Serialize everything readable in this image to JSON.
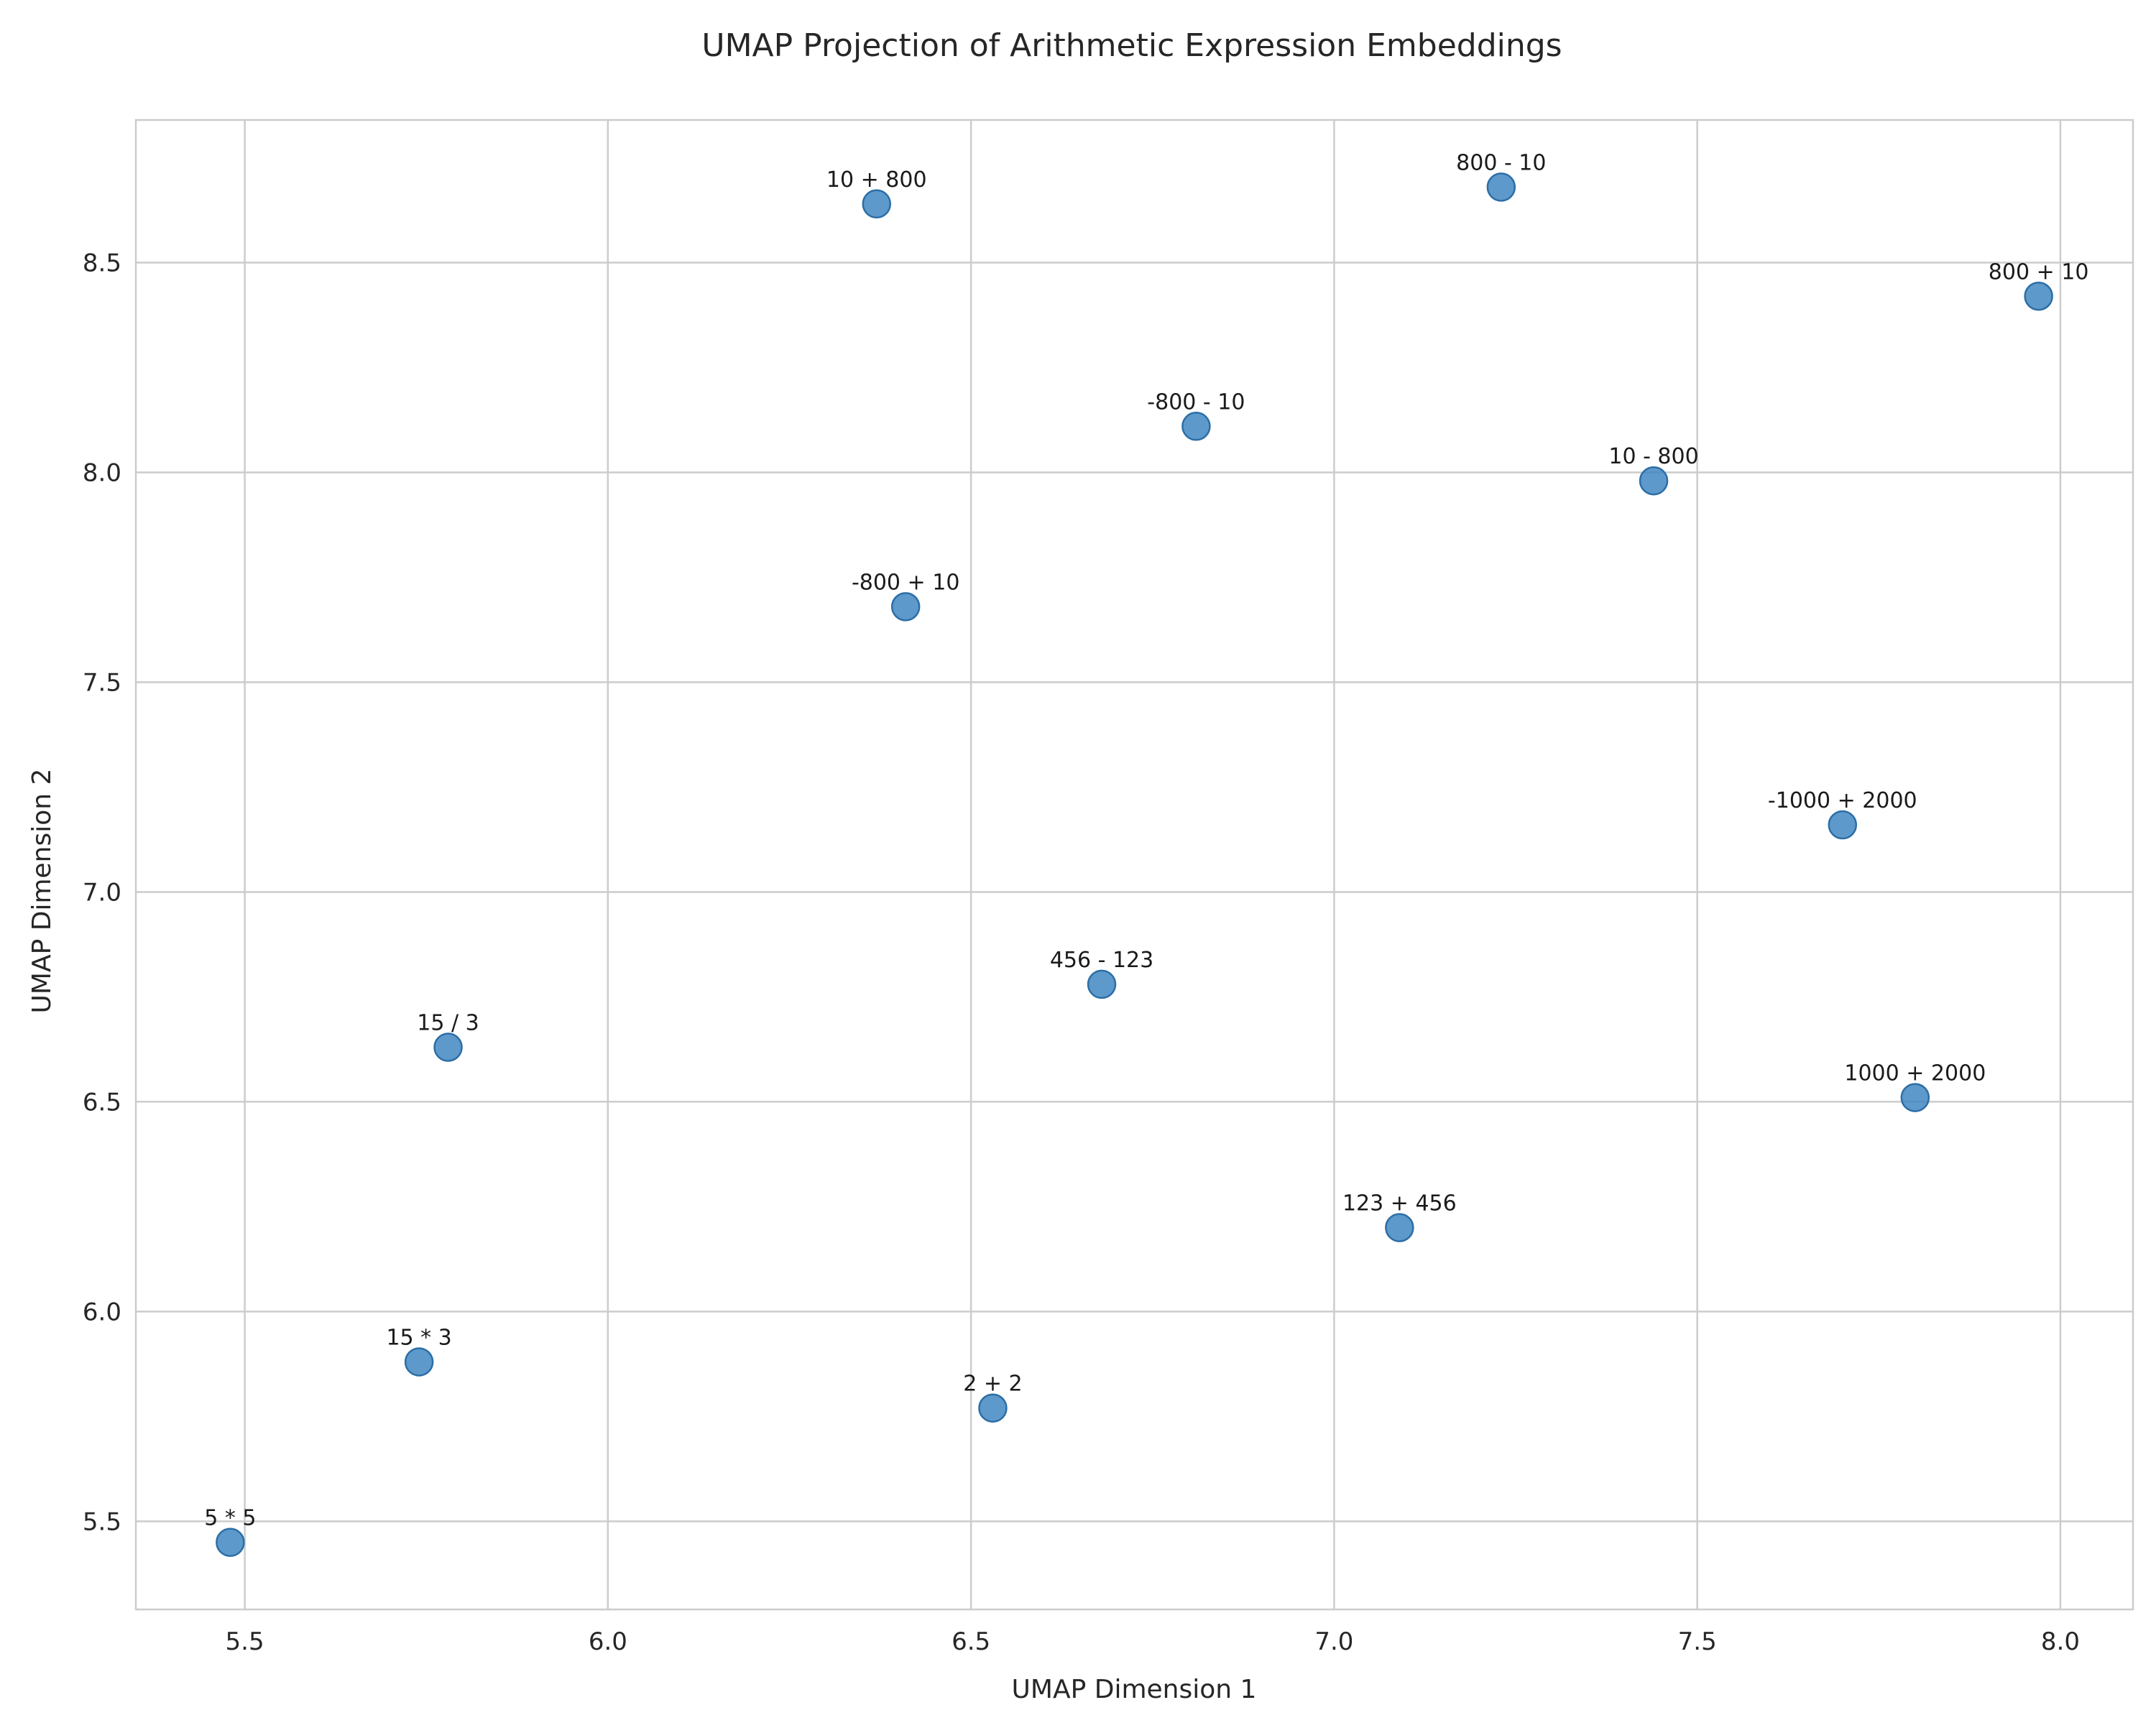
{
  "chart_data": {
    "type": "scatter",
    "title": "UMAP Projection of Arithmetic Expression Embeddings",
    "xlabel": "UMAP Dimension 1",
    "ylabel": "UMAP Dimension 2",
    "xlim": [
      5.35,
      8.1
    ],
    "ylim": [
      5.29,
      8.84
    ],
    "xticks": [
      5.5,
      6.0,
      6.5,
      7.0,
      7.5,
      8.0
    ],
    "xtick_labels": [
      "5.5",
      "6.0",
      "6.5",
      "7.0",
      "7.5",
      "8.0"
    ],
    "yticks": [
      5.5,
      6.0,
      6.5,
      7.0,
      7.5,
      8.0,
      8.5
    ],
    "ytick_labels": [
      "5.5",
      "6.0",
      "6.5",
      "7.0",
      "7.5",
      "8.0",
      "8.5"
    ],
    "grid": true,
    "point_color": "#3b82bf",
    "points": [
      {
        "label": "10 + 800",
        "x": 6.37,
        "y": 8.64
      },
      {
        "label": "800 - 10",
        "x": 7.23,
        "y": 8.68
      },
      {
        "label": "800 + 10",
        "x": 7.97,
        "y": 8.42
      },
      {
        "label": "-800 - 10",
        "x": 6.81,
        "y": 8.11
      },
      {
        "label": "10 - 800",
        "x": 7.44,
        "y": 7.98
      },
      {
        "label": "-800 + 10",
        "x": 6.41,
        "y": 7.68
      },
      {
        "label": "-1000 + 2000",
        "x": 7.7,
        "y": 7.16
      },
      {
        "label": "456 - 123",
        "x": 6.68,
        "y": 6.78
      },
      {
        "label": "15 / 3",
        "x": 5.78,
        "y": 6.63
      },
      {
        "label": "1000 + 2000",
        "x": 7.8,
        "y": 6.51
      },
      {
        "label": "123 + 456",
        "x": 7.09,
        "y": 6.2
      },
      {
        "label": "15 * 3",
        "x": 5.74,
        "y": 5.88
      },
      {
        "label": "2 + 2",
        "x": 6.53,
        "y": 5.77
      },
      {
        "label": "5 * 5",
        "x": 5.48,
        "y": 5.45
      }
    ]
  }
}
